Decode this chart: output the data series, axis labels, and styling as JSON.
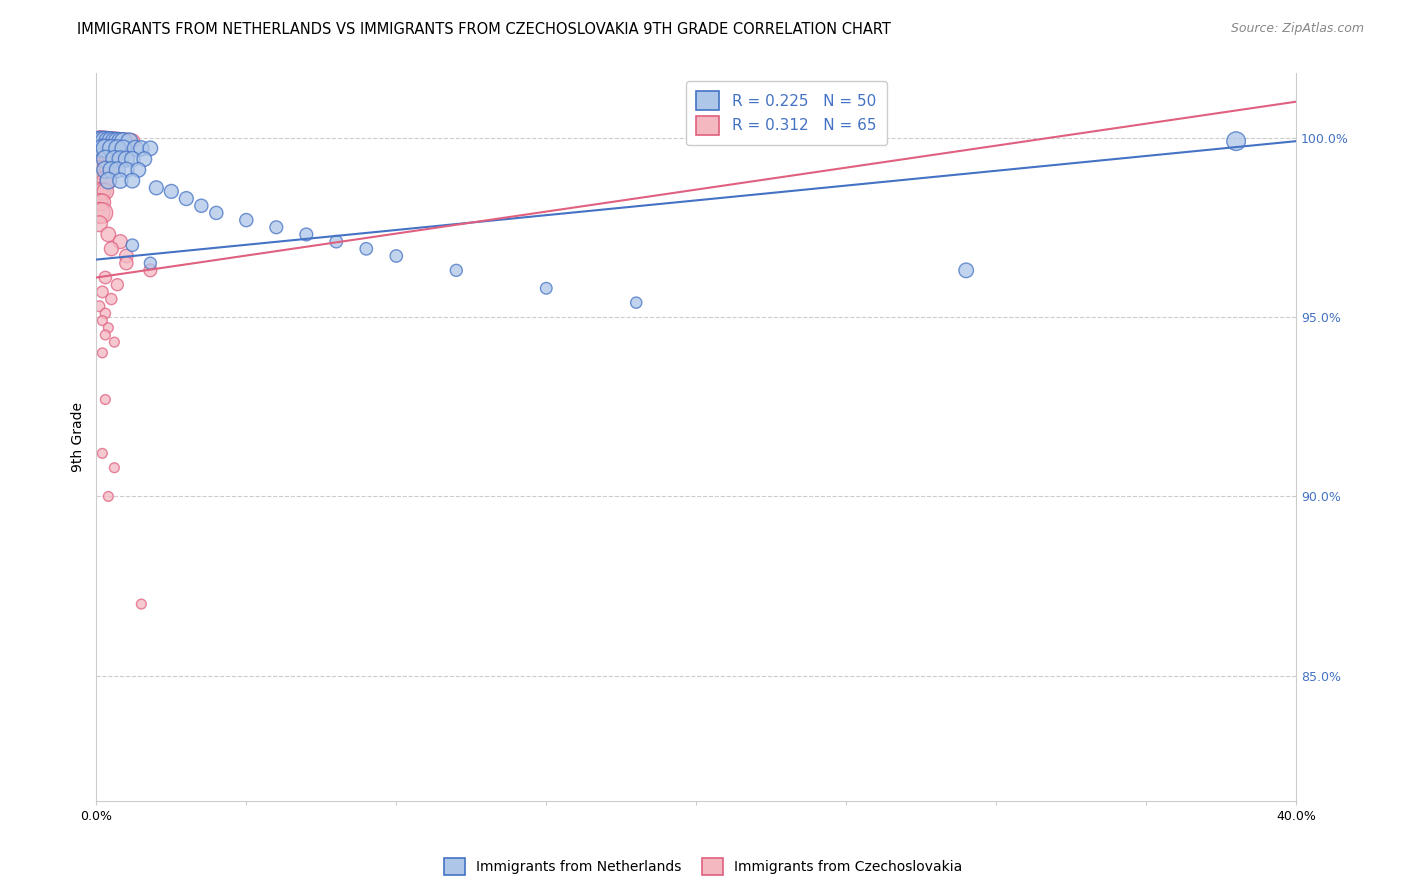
{
  "title": "IMMIGRANTS FROM NETHERLANDS VS IMMIGRANTS FROM CZECHOSLOVAKIA 9TH GRADE CORRELATION CHART",
  "source": "Source: ZipAtlas.com",
  "ylabel": "9th Grade",
  "yticks_pct": [
    100.0,
    95.0,
    90.0,
    85.0
  ],
  "ytick_labels": [
    "100.0%",
    "95.0%",
    "90.0%",
    "85.0%"
  ],
  "xlim": [
    0.0,
    0.4
  ],
  "ylim": [
    0.815,
    1.018
  ],
  "legend_blue_r": "0.225",
  "legend_blue_n": "50",
  "legend_pink_r": "0.312",
  "legend_pink_n": "65",
  "blue_fill": "#aec6e8",
  "pink_fill": "#f4b8c1",
  "blue_edge": "#4472c4",
  "pink_edge": "#e06080",
  "blue_line": "#4472c4",
  "pink_line": "#e06080",
  "blue_trendline_x": [
    0.0,
    0.4
  ],
  "blue_trendline_y": [
    0.966,
    0.999
  ],
  "pink_trendline_x": [
    0.0,
    0.4
  ],
  "pink_trendline_y": [
    0.961,
    1.01
  ],
  "blue_x": [
    0.001,
    0.002,
    0.003,
    0.004,
    0.005,
    0.006,
    0.007,
    0.008,
    0.009,
    0.011,
    0.002,
    0.003,
    0.005,
    0.007,
    0.009,
    0.013,
    0.015,
    0.018,
    0.003,
    0.006,
    0.008,
    0.01,
    0.012,
    0.016,
    0.003,
    0.005,
    0.007,
    0.01,
    0.014,
    0.004,
    0.008,
    0.012,
    0.02,
    0.025,
    0.03,
    0.035,
    0.04,
    0.05,
    0.06,
    0.07,
    0.08,
    0.09,
    0.1,
    0.12,
    0.15,
    0.18,
    0.29,
    0.38,
    0.012,
    0.018
  ],
  "blue_y": [
    0.999,
    0.999,
    0.999,
    0.999,
    0.999,
    0.999,
    0.999,
    0.999,
    0.999,
    0.999,
    0.997,
    0.997,
    0.997,
    0.997,
    0.997,
    0.997,
    0.997,
    0.997,
    0.994,
    0.994,
    0.994,
    0.994,
    0.994,
    0.994,
    0.991,
    0.991,
    0.991,
    0.991,
    0.991,
    0.988,
    0.988,
    0.988,
    0.986,
    0.985,
    0.983,
    0.981,
    0.979,
    0.977,
    0.975,
    0.973,
    0.971,
    0.969,
    0.967,
    0.963,
    0.958,
    0.954,
    0.963,
    0.999,
    0.97,
    0.965
  ],
  "pink_x": [
    0.001,
    0.002,
    0.003,
    0.004,
    0.005,
    0.006,
    0.007,
    0.008,
    0.009,
    0.01,
    0.011,
    0.012,
    0.001,
    0.002,
    0.003,
    0.004,
    0.005,
    0.006,
    0.007,
    0.008,
    0.001,
    0.002,
    0.003,
    0.004,
    0.005,
    0.006,
    0.001,
    0.002,
    0.003,
    0.004,
    0.005,
    0.001,
    0.002,
    0.003,
    0.004,
    0.001,
    0.002,
    0.003,
    0.001,
    0.002,
    0.001,
    0.002,
    0.001,
    0.004,
    0.008,
    0.005,
    0.01,
    0.01,
    0.018,
    0.003,
    0.007,
    0.002,
    0.005,
    0.001,
    0.003,
    0.002,
    0.004,
    0.003,
    0.006,
    0.002,
    0.002,
    0.006,
    0.015,
    0.003,
    0.004
  ],
  "pink_y": [
    0.999,
    0.999,
    0.999,
    0.999,
    0.999,
    0.999,
    0.999,
    0.999,
    0.999,
    0.999,
    0.999,
    0.999,
    0.997,
    0.997,
    0.997,
    0.997,
    0.997,
    0.997,
    0.997,
    0.997,
    0.994,
    0.994,
    0.994,
    0.994,
    0.994,
    0.994,
    0.991,
    0.991,
    0.991,
    0.991,
    0.991,
    0.988,
    0.988,
    0.988,
    0.988,
    0.985,
    0.985,
    0.985,
    0.982,
    0.982,
    0.979,
    0.979,
    0.976,
    0.973,
    0.971,
    0.969,
    0.967,
    0.965,
    0.963,
    0.961,
    0.959,
    0.957,
    0.955,
    0.953,
    0.951,
    0.949,
    0.947,
    0.945,
    0.943,
    0.94,
    0.912,
    0.908,
    0.87,
    0.927,
    0.9
  ],
  "blue_sizes": [
    200,
    200,
    200,
    180,
    180,
    160,
    160,
    150,
    150,
    140,
    170,
    170,
    160,
    150,
    140,
    130,
    120,
    110,
    160,
    150,
    140,
    130,
    120,
    110,
    150,
    140,
    130,
    120,
    110,
    140,
    120,
    110,
    100,
    100,
    100,
    90,
    90,
    90,
    85,
    85,
    80,
    80,
    80,
    75,
    70,
    65,
    110,
    180,
    80,
    75
  ],
  "pink_sizes": [
    220,
    210,
    200,
    190,
    180,
    170,
    160,
    150,
    140,
    130,
    120,
    110,
    200,
    190,
    180,
    170,
    160,
    150,
    140,
    130,
    190,
    180,
    170,
    160,
    150,
    140,
    180,
    170,
    160,
    150,
    140,
    170,
    160,
    150,
    140,
    160,
    150,
    140,
    150,
    140,
    230,
    220,
    130,
    110,
    100,
    100,
    95,
    90,
    85,
    80,
    75,
    70,
    65,
    60,
    55,
    50,
    50,
    50,
    50,
    50,
    50,
    50,
    50,
    50,
    50
  ],
  "title_fontsize": 10.5,
  "source_fontsize": 9,
  "axis_label_fontsize": 10,
  "tick_fontsize": 9,
  "legend_fontsize": 11
}
